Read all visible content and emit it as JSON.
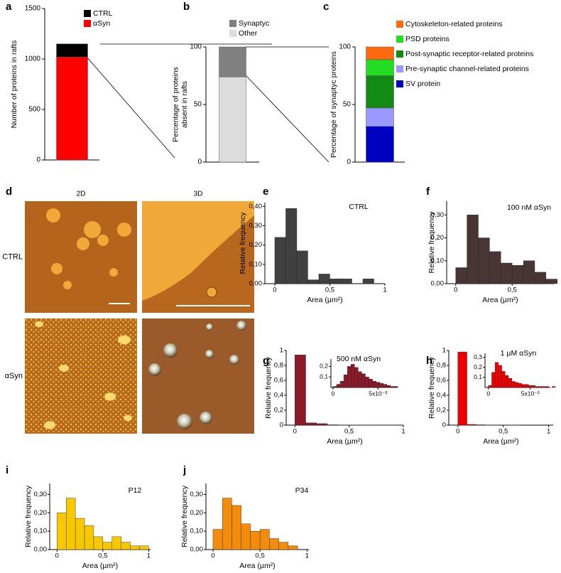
{
  "chart_data": [
    {
      "type": "bar",
      "panel": "a",
      "stacked": true,
      "ylabel": "Number of proteins in rafts",
      "categories": [
        null
      ],
      "ylim": [
        0,
        1500
      ],
      "yticks": [
        0,
        500,
        1000,
        1500
      ],
      "series": [
        {
          "name": "αSyn",
          "color": "#ff0000",
          "values": [
            1020
          ]
        },
        {
          "name": "CTRL",
          "color": "#000000",
          "values": [
            130
          ]
        }
      ]
    },
    {
      "type": "bar",
      "panel": "b",
      "stacked": true,
      "ylabel": [
        "Percentage of proteins",
        "absent in rafts"
      ],
      "categories": [
        null
      ],
      "ylim": [
        0,
        100
      ],
      "yticks": [
        0,
        50,
        100
      ],
      "series": [
        {
          "name": "Other",
          "color": "#dcdcdc",
          "values": [
            74
          ]
        },
        {
          "name": "Synaptyc",
          "color": "#808080",
          "values": [
            26
          ]
        }
      ]
    },
    {
      "type": "bar",
      "panel": "c",
      "stacked": true,
      "ylabel": "Percentage of synaptyc proteins",
      "categories": [
        null
      ],
      "ylim": [
        0,
        100
      ],
      "yticks": [
        0,
        50,
        100
      ],
      "series": [
        {
          "name": "SV protein",
          "color": "#0000c0",
          "values": [
            31
          ]
        },
        {
          "name": "Pre-synaptic channel-related proteins",
          "color": "#9999ff",
          "values": [
            16
          ]
        },
        {
          "name": "Post-synaptic receptor-related proteins",
          "color": "#138a13",
          "values": [
            28
          ]
        },
        {
          "name": "PSD proteins",
          "color": "#22dd22",
          "values": [
            14
          ]
        },
        {
          "name": "Cytoskeleton-related proteins",
          "color": "#ff6a10",
          "values": [
            11
          ]
        }
      ]
    },
    {
      "type": "image",
      "panel": "d",
      "columns": [
        "2D",
        "3D"
      ],
      "rows": [
        "CTRL",
        "αSyn"
      ]
    },
    {
      "type": "histogram",
      "panel": "e",
      "title": "CTRL",
      "xlabel": "Area (µm²)",
      "ylabel": "Relative frequency",
      "color": "#404040",
      "bins": [
        0,
        0.1,
        0.2,
        0.3,
        0.4,
        0.5,
        0.6,
        0.7,
        0.8,
        0.9
      ],
      "values": [
        0.24,
        0.39,
        0.17,
        0.02,
        0.05,
        0.025,
        0.025,
        0,
        0.025
      ],
      "xlim": [
        -0.09,
        1
      ],
      "ylim": [
        0,
        0.42
      ],
      "xticks": [
        0,
        {
          "value": 0.5,
          "label": "0,5"
        },
        1
      ],
      "yticks": [
        {
          "value": 0,
          "label": "0,00"
        },
        {
          "value": 0.1,
          "label": "0,10"
        },
        {
          "value": 0.2,
          "label": "0,20"
        },
        {
          "value": 0.3,
          "label": "0,30"
        },
        {
          "value": 0.4,
          "label": "0,40"
        }
      ]
    },
    {
      "type": "histogram",
      "panel": "f",
      "title": "100 nM αSyn",
      "xlabel": "Area (µm²)",
      "ylabel": "Relative frequency",
      "color": "#4a3535",
      "bins": [
        0,
        0.1,
        0.2,
        0.3,
        0.4,
        0.5,
        0.6,
        0.7,
        0.8,
        0.9
      ],
      "values": [
        0.07,
        0.3,
        0.2,
        0.14,
        0.09,
        0.08,
        0.1,
        0.05,
        0.02
      ],
      "xlim": [
        -0.08,
        0.87
      ],
      "ylim": [
        0,
        0.36
      ],
      "xticks": [
        0,
        {
          "value": 0.5,
          "label": "0,5"
        }
      ],
      "yticks": [
        {
          "value": 0,
          "label": "0,00"
        },
        {
          "value": 0.1,
          "label": "0,10"
        },
        {
          "value": 0.2,
          "label": "0,20"
        },
        {
          "value": 0.3,
          "label": "0,30"
        }
      ]
    },
    {
      "type": "histogram",
      "panel": "g",
      "title": "500 nM αSyn",
      "xlabel": "Area (µm²)",
      "ylabel": "Relative frequency",
      "color": "#8b1a2a",
      "bins": [
        0,
        0.1,
        0.2,
        0.3,
        0.4,
        0.5,
        0.6,
        0.7,
        0.8,
        0.9,
        1.0
      ],
      "values": [
        0.94,
        0.03,
        0.02,
        0.005,
        0.003,
        0.002,
        0.002,
        0.001,
        0.001,
        0.001
      ],
      "xlim": [
        -0.08,
        1
      ],
      "ylim": [
        0,
        1
      ],
      "xticks": [
        0,
        {
          "value": 0.5,
          "label": "0,5"
        },
        1
      ],
      "yticks": [
        0,
        {
          "value": 0.2,
          "label": "0,2"
        },
        {
          "value": 0.4,
          "label": "0,4"
        },
        {
          "value": 0.6,
          "label": "0,6"
        },
        {
          "value": 0.8,
          "label": "0,8"
        },
        1
      ],
      "inset": {
        "bins": [
          0,
          0.0004,
          0.0008,
          0.0012,
          0.0016,
          0.002,
          0.0024,
          0.0028,
          0.0032,
          0.0036,
          0.004,
          0.0044,
          0.0048,
          0.0052,
          0.0056,
          0.006,
          0.0064,
          0.0068,
          0.0072
        ],
        "values": [
          0.01,
          0.03,
          0.06,
          0.12,
          0.2,
          0.22,
          0.19,
          0.15,
          0.13,
          0.1,
          0.08,
          0.06,
          0.05,
          0.04,
          0.03,
          0.02,
          0.01,
          0.01
        ],
        "xlim": [
          -0.00023,
          0.0072
        ],
        "ylim": [
          0,
          0.27
        ],
        "xticks": [
          0,
          {
            "value": 0.005,
            "label": "5x10⁻³"
          }
        ],
        "yticks": [
          {
            "value": 0.1,
            "label": "0,1"
          },
          {
            "value": 0.2,
            "label": "0,2"
          }
        ]
      }
    },
    {
      "type": "histogram",
      "panel": "h",
      "title": "1 µM αSyn",
      "xlabel": "Area (µm²)",
      "ylabel": "Relative frequency",
      "color": "#ee0000",
      "bins": [
        0,
        0.1,
        0.2,
        0.3,
        0.4,
        0.5,
        0.6,
        0.7,
        0.8,
        0.9,
        1.0
      ],
      "values": [
        0.98,
        0.01,
        0.005,
        0.002,
        0.001,
        0.001,
        0.001,
        0,
        0,
        0
      ],
      "xlim": [
        -0.1,
        1.05
      ],
      "ylim": [
        0,
        1
      ],
      "xticks": [
        0,
        {
          "value": 0.5,
          "label": "0,5"
        },
        1
      ],
      "yticks": [
        0,
        {
          "value": 0.2,
          "label": "0,2"
        },
        {
          "value": 0.4,
          "label": "0,4"
        },
        {
          "value": 0.6,
          "label": "0,6"
        },
        {
          "value": 0.8,
          "label": "0,8"
        },
        1
      ],
      "inset": {
        "bins": [
          0,
          0.0004,
          0.0008,
          0.0012,
          0.0016,
          0.002,
          0.0024,
          0.0028,
          0.0032,
          0.0036,
          0.004,
          0.0044,
          0.0048,
          0.0052,
          0.0056,
          0.006,
          0.0064,
          0.0068,
          0.0072,
          0.0076,
          0.008
        ],
        "values": [
          0.02,
          0.15,
          0.25,
          0.22,
          0.16,
          0.12,
          0.09,
          0.06,
          0.05,
          0.04,
          0.03,
          0.03,
          0.02,
          0.02,
          0.01,
          0.01,
          0.01,
          0.01,
          0,
          0.01
        ],
        "xlim": [
          -0.0004,
          0.0074
        ],
        "ylim": [
          0,
          0.34
        ],
        "xticks": [
          0,
          {
            "value": 0.005,
            "label": "5x10⁻³"
          }
        ],
        "yticks": [
          {
            "value": 0.1,
            "label": "0,1"
          },
          {
            "value": 0.2,
            "label": "0,2"
          },
          {
            "value": 0.3,
            "label": "0,3"
          }
        ]
      }
    },
    {
      "type": "histogram",
      "panel": "i",
      "title": "P12",
      "xlabel": "Area (µm²)",
      "ylabel": "Relative frequency",
      "color": "#f5c800",
      "bins": [
        0,
        0.1,
        0.2,
        0.3,
        0.4,
        0.5,
        0.6,
        0.7,
        0.8,
        0.9,
        1.0
      ],
      "values": [
        0.2,
        0.28,
        0.17,
        0.13,
        0.07,
        0.04,
        0.07,
        0.04,
        0.02,
        0.02
      ],
      "xlim": [
        -0.08,
        1.02
      ],
      "ylim": [
        0,
        0.36
      ],
      "xticks": [
        0,
        {
          "value": 0.5,
          "label": "0,5"
        },
        1
      ],
      "yticks": [
        {
          "value": 0,
          "label": "0,00"
        },
        {
          "value": 0.1,
          "label": "0,10"
        },
        {
          "value": 0.2,
          "label": "0,20"
        },
        {
          "value": 0.3,
          "label": "0,30"
        }
      ]
    },
    {
      "type": "histogram",
      "panel": "j",
      "title": "P34",
      "xlabel": "Area (µm²)",
      "ylabel": "Relative frequency",
      "color": "#f28c0a",
      "bins": [
        0,
        0.1,
        0.2,
        0.3,
        0.4,
        0.5,
        0.6,
        0.7,
        0.8,
        0.9
      ],
      "values": [
        0.11,
        0.28,
        0.24,
        0.14,
        0.1,
        0.11,
        0.06,
        0.04,
        0.02
      ],
      "xlim": [
        -0.075,
        1.02
      ],
      "ylim": [
        0,
        0.36
      ],
      "xticks": [
        0,
        {
          "value": 0.5,
          "label": "0,5"
        },
        1
      ],
      "yticks": [
        {
          "value": 0,
          "label": "0,00"
        },
        {
          "value": 0.1,
          "label": "0,10"
        },
        {
          "value": 0.2,
          "label": "0,20"
        },
        {
          "value": 0.3,
          "label": "0,30"
        }
      ]
    }
  ]
}
